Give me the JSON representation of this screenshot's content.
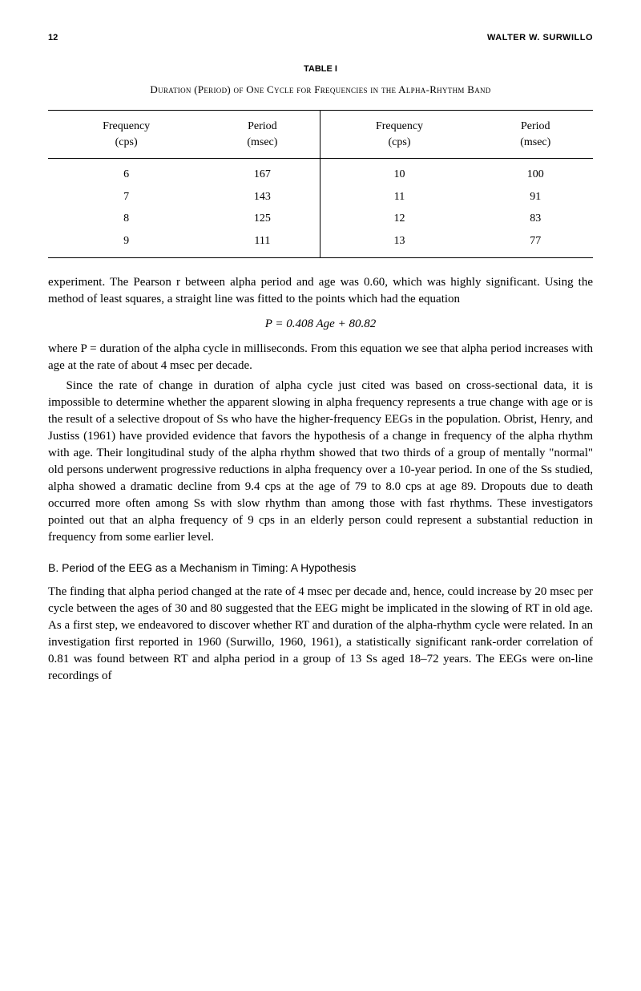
{
  "header": {
    "page_number": "12",
    "author": "WALTER W. SURWILLO"
  },
  "table": {
    "label": "TABLE I",
    "caption": "Duration (Period) of One Cycle for Frequencies in the Alpha-Rhythm Band",
    "columns_left": {
      "freq_header": "Frequency",
      "freq_unit": "(cps)",
      "period_header": "Period",
      "period_unit": "(msec)"
    },
    "columns_right": {
      "freq_header": "Frequency",
      "freq_unit": "(cps)",
      "period_header": "Period",
      "period_unit": "(msec)"
    },
    "rows": [
      {
        "lf": "6",
        "lp": "167",
        "rf": "10",
        "rp": "100"
      },
      {
        "lf": "7",
        "lp": "143",
        "rf": "11",
        "rp": "91"
      },
      {
        "lf": "8",
        "lp": "125",
        "rf": "12",
        "rp": "83"
      },
      {
        "lf": "9",
        "lp": "111",
        "rf": "13",
        "rp": "77"
      }
    ]
  },
  "body": {
    "p1": "experiment. The Pearson r between alpha period and age was 0.60, which was highly significant. Using the method of least squares, a straight line was fitted to the points which had the equation",
    "equation": "P = 0.408 Age + 80.82",
    "p2": "where P = duration of the alpha cycle in milliseconds. From this equation we see that alpha period increases with age at the rate of about 4 msec per decade.",
    "p3": "Since the rate of change in duration of alpha cycle just cited was based on cross-sectional data, it is impossible to determine whether the apparent slowing in alpha frequency represents a true change with age or is the result of a selective dropout of Ss who have the higher-frequency EEGs in the population. Obrist, Henry, and Justiss (1961) have provided evidence that favors the hypothesis of a change in frequency of the alpha rhythm with age. Their longitudinal study of the alpha rhythm showed that two thirds of a group of mentally \"normal\" old persons underwent progressive reductions in alpha frequency over a 10-year period. In one of the Ss studied, alpha showed a dramatic decline from 9.4 cps at the age of 79 to 8.0 cps at age 89. Dropouts due to death occurred more often among Ss with slow rhythm than among those with fast rhythms. These investigators pointed out that an alpha frequency of 9 cps in an elderly person could represent a substantial reduction in frequency from some earlier level.",
    "section_b_heading": "B.   Period of the EEG as a Mechanism in Timing: A Hypothesis",
    "p4": "The finding that alpha period changed at the rate of 4 msec per decade and, hence, could increase by 20 msec per cycle between the ages of 30 and 80 suggested that the EEG might be implicated in the slowing of RT in old age. As a first step, we endeavored to discover whether RT and duration of the alpha-rhythm cycle were related. In an investigation first reported in 1960 (Surwillo, 1960, 1961), a statistically significant rank-order correlation of 0.81 was found between RT and alpha period in a group of 13 Ss aged 18–72 years. The EEGs were on-line recordings of"
  }
}
